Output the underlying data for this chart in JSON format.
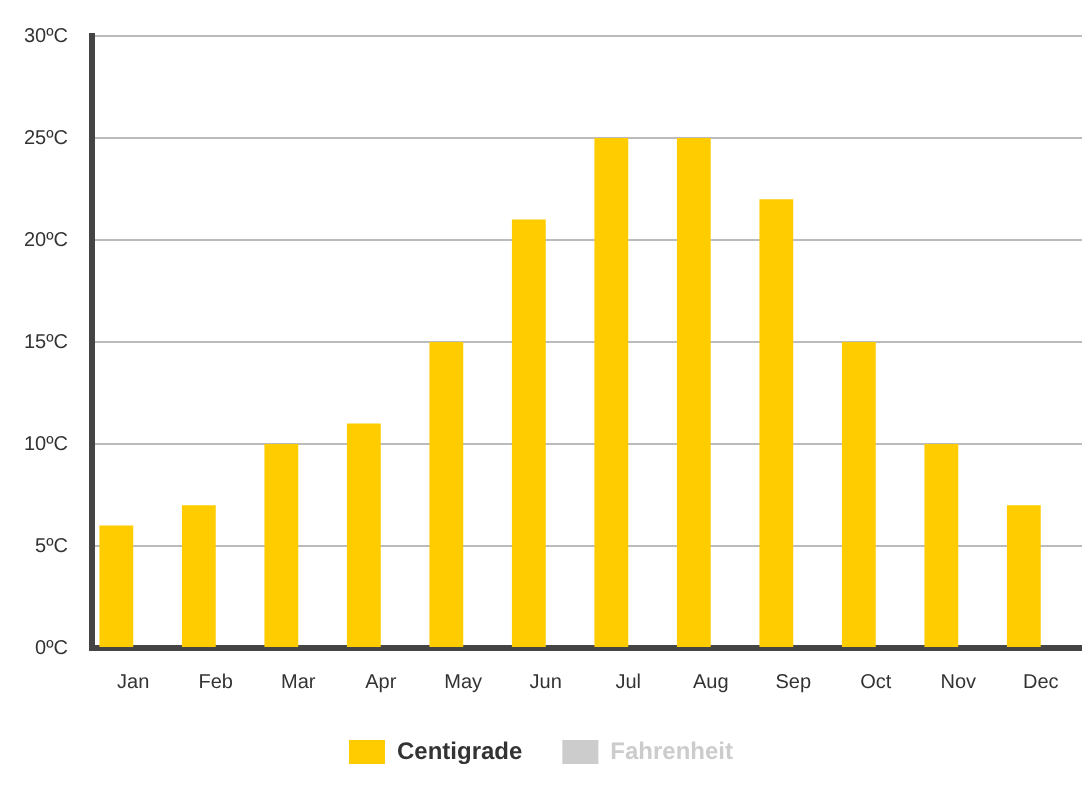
{
  "chart_data": {
    "type": "bar",
    "categories": [
      "Jan",
      "Feb",
      "Mar",
      "Apr",
      "May",
      "Jun",
      "Jul",
      "Aug",
      "Sep",
      "Oct",
      "Nov",
      "Dec"
    ],
    "series": [
      {
        "name": "Centigrade",
        "color": "#ffcc00",
        "values": [
          6,
          7,
          10,
          11,
          15,
          21,
          25,
          25,
          22,
          15,
          10,
          7
        ]
      },
      {
        "name": "Fahrenheit",
        "color": "#cccccc",
        "values": [
          null,
          null,
          null,
          null,
          null,
          null,
          null,
          null,
          null,
          null,
          null,
          null
        ]
      }
    ],
    "ylim": [
      0,
      30
    ],
    "yticks": [
      {
        "value": 0,
        "label": "0ºC"
      },
      {
        "value": 5,
        "label": "5ºC"
      },
      {
        "value": 10,
        "label": "10ºC"
      },
      {
        "value": 15,
        "label": "15ºC"
      },
      {
        "value": 20,
        "label": "20ºC"
      },
      {
        "value": 25,
        "label": "25ºC"
      },
      {
        "value": 30,
        "label": "30ºC"
      }
    ],
    "grid": "y",
    "legend": "bottom"
  }
}
